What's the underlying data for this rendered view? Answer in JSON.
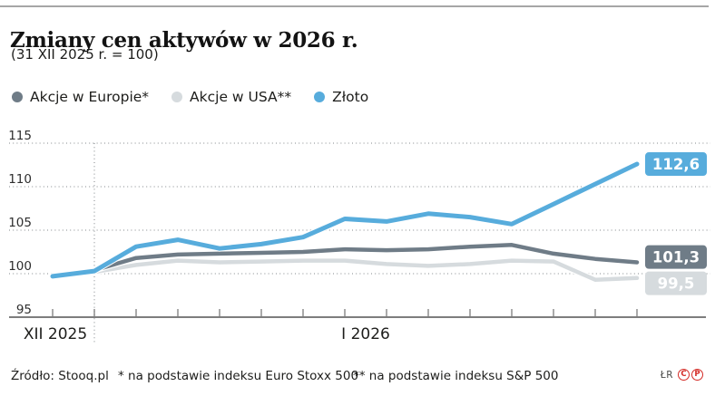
{
  "header": {
    "title": "Zmiany cen aktywów w 2026 r.",
    "subtitle": "(31 XII 2025 r. = 100)"
  },
  "legend": {
    "items": [
      {
        "label": "Akcje w Europie*",
        "color": "#6F7C87"
      },
      {
        "label": "Akcje w USA**",
        "color": "#D6DBDE"
      },
      {
        "label": "Złoto",
        "color": "#57ACDC"
      }
    ]
  },
  "chart_data": {
    "type": "line",
    "title": "Zmiany cen aktywów w 2026 r.",
    "subtitle": "(31 XII 2025 r. = 100)",
    "x_axis": {
      "section_labels": [
        "XII 2025",
        "I 2026"
      ],
      "points": 15,
      "december_points": 2
    },
    "y_axis": {
      "ticks": [
        95,
        100,
        105,
        110,
        115
      ],
      "range": [
        95,
        115
      ]
    },
    "grid": "dotted horizontal lines, dotted vertical divider after December",
    "legend_position": "top-left",
    "series": [
      {
        "name": "Akcje w Europie*",
        "color": "#6F7C87",
        "end_label": "101,3",
        "values": [
          99.7,
          100.4,
          101.8,
          102.2,
          102.3,
          102.4,
          102.5,
          102.8,
          102.7,
          102.8,
          103.1,
          103.3,
          102.3,
          101.7,
          101.3
        ]
      },
      {
        "name": "Akcje w USA**",
        "color": "#D6DBDE",
        "end_label": "99,5",
        "values": [
          99.6,
          100.2,
          101.0,
          101.5,
          101.3,
          101.4,
          101.5,
          101.5,
          101.1,
          100.9,
          101.1,
          101.5,
          101.4,
          99.3,
          99.5
        ]
      },
      {
        "name": "Złoto",
        "color": "#57ACDC",
        "end_label": "112,6",
        "values": [
          99.7,
          100.3,
          103.1,
          103.9,
          102.9,
          103.4,
          104.2,
          106.3,
          106.0,
          106.9,
          106.5,
          105.7,
          108.0,
          110.3,
          112.6
        ]
      }
    ]
  },
  "footer": {
    "source": "Źródło: Stooq.pl",
    "note_europe": "* na podstawie indeksu Euro Stoxx 500",
    "note_usa": "** na podstawie indeksu S&P 500",
    "credit": "ŁR",
    "icon_c": "C",
    "icon_p": "P"
  }
}
